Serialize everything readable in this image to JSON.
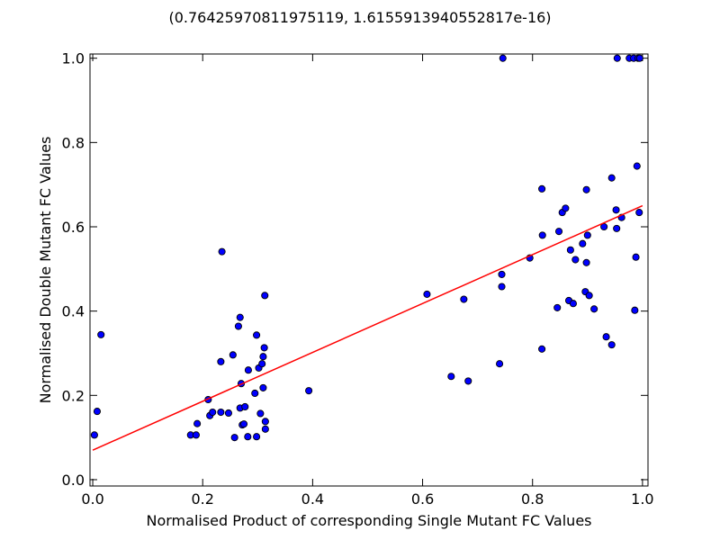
{
  "chart_data": {
    "type": "scatter",
    "title": "(0.76425970811975119, 1.6155913940552817e-16)",
    "xlabel": "Normalised Product of corresponding Single Mutant FC Values",
    "ylabel": "Normalised Double Mutant FC Values",
    "xlim": [
      -0.005,
      1.01
    ],
    "ylim": [
      -0.015,
      1.01
    ],
    "xticks": [
      0.0,
      0.2,
      0.4,
      0.6,
      0.8,
      1.0
    ],
    "xtick_labels": [
      "0.0",
      "0.2",
      "0.4",
      "0.6",
      "0.8",
      "1.0"
    ],
    "yticks": [
      0.0,
      0.2,
      0.4,
      0.6,
      0.8,
      1.0
    ],
    "ytick_labels": [
      "0.0",
      "0.2",
      "0.4",
      "0.6",
      "0.8",
      "1.0"
    ],
    "grid": false,
    "marker_color": "#0000ff",
    "marker_edge_color": "#000000",
    "fit_line_color": "#ff0000",
    "points": [
      [
        0.003,
        0.106
      ],
      [
        0.008,
        0.162
      ],
      [
        0.015,
        0.344
      ],
      [
        0.178,
        0.106
      ],
      [
        0.188,
        0.106
      ],
      [
        0.19,
        0.133
      ],
      [
        0.21,
        0.19
      ],
      [
        0.213,
        0.152
      ],
      [
        0.218,
        0.16
      ],
      [
        0.233,
        0.28
      ],
      [
        0.233,
        0.16
      ],
      [
        0.235,
        0.541
      ],
      [
        0.247,
        0.158
      ],
      [
        0.255,
        0.296
      ],
      [
        0.258,
        0.1
      ],
      [
        0.265,
        0.364
      ],
      [
        0.268,
        0.385
      ],
      [
        0.268,
        0.17
      ],
      [
        0.27,
        0.228
      ],
      [
        0.272,
        0.13
      ],
      [
        0.275,
        0.132
      ],
      [
        0.277,
        0.173
      ],
      [
        0.282,
        0.102
      ],
      [
        0.283,
        0.26
      ],
      [
        0.295,
        0.205
      ],
      [
        0.298,
        0.343
      ],
      [
        0.298,
        0.102
      ],
      [
        0.302,
        0.265
      ],
      [
        0.305,
        0.157
      ],
      [
        0.308,
        0.275
      ],
      [
        0.31,
        0.292
      ],
      [
        0.31,
        0.218
      ],
      [
        0.312,
        0.313
      ],
      [
        0.313,
        0.437
      ],
      [
        0.314,
        0.138
      ],
      [
        0.314,
        0.12
      ],
      [
        0.393,
        0.211
      ],
      [
        0.608,
        0.44
      ],
      [
        0.652,
        0.245
      ],
      [
        0.675,
        0.428
      ],
      [
        0.683,
        0.234
      ],
      [
        0.74,
        0.275
      ],
      [
        0.744,
        0.487
      ],
      [
        0.744,
        0.458
      ],
      [
        0.746,
        1.0
      ],
      [
        0.795,
        0.526
      ],
      [
        0.817,
        0.69
      ],
      [
        0.818,
        0.58
      ],
      [
        0.817,
        0.31
      ],
      [
        0.845,
        0.408
      ],
      [
        0.848,
        0.589
      ],
      [
        0.854,
        0.634
      ],
      [
        0.86,
        0.644
      ],
      [
        0.866,
        0.425
      ],
      [
        0.869,
        0.545
      ],
      [
        0.874,
        0.418
      ],
      [
        0.878,
        0.522
      ],
      [
        0.891,
        0.56
      ],
      [
        0.896,
        0.446
      ],
      [
        0.898,
        0.515
      ],
      [
        0.898,
        0.688
      ],
      [
        0.9,
        0.58
      ],
      [
        0.903,
        0.437
      ],
      [
        0.912,
        0.405
      ],
      [
        0.93,
        0.6
      ],
      [
        0.934,
        0.339
      ],
      [
        0.944,
        0.716
      ],
      [
        0.944,
        0.32
      ],
      [
        0.952,
        0.64
      ],
      [
        0.953,
        0.596
      ],
      [
        0.954,
        1.0
      ],
      [
        0.962,
        0.622
      ],
      [
        0.976,
        1.0
      ],
      [
        0.984,
        1.0
      ],
      [
        0.986,
        0.402
      ],
      [
        0.988,
        0.528
      ],
      [
        0.99,
        0.744
      ],
      [
        0.992,
        1.0
      ],
      [
        0.994,
        0.634
      ],
      [
        0.995,
        1.0
      ]
    ],
    "fit_line": [
      [
        0.0,
        0.07
      ],
      [
        1.0,
        0.65
      ]
    ]
  }
}
